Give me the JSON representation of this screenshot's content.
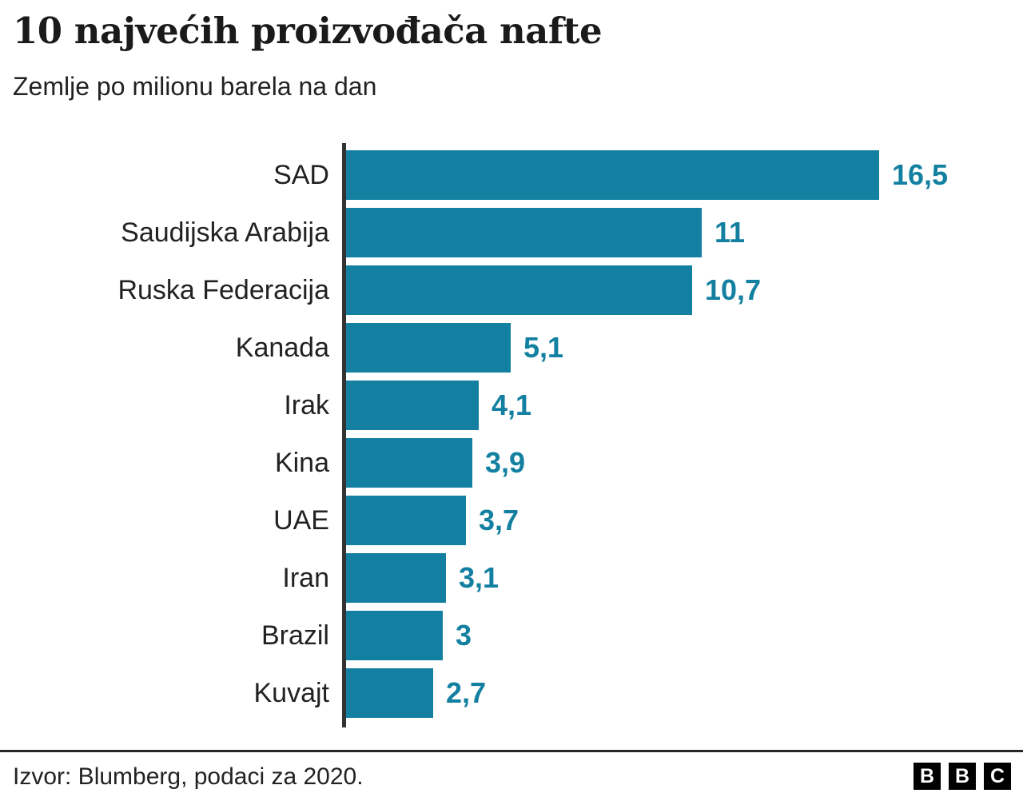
{
  "header": {
    "title": "10 najvećih proizvođača nafte",
    "subtitle": "Zemlje po milionu barela na dan"
  },
  "chart_data": {
    "type": "bar",
    "orientation": "horizontal",
    "title": "10 najvećih proizvođača nafte",
    "subtitle": "Zemlje po milionu barela na dan",
    "categories": [
      "SAD",
      "Saudijska Arabija",
      "Ruska Federacija",
      "Kanada",
      "Irak",
      "Kina",
      "UAE",
      "Iran",
      "Brazil",
      "Kuvajt"
    ],
    "values": [
      16.5,
      11,
      10.7,
      5.1,
      4.1,
      3.9,
      3.7,
      3.1,
      3,
      2.7
    ],
    "value_labels": [
      "16,5",
      "11",
      "10,7",
      "5,1",
      "4,1",
      "3,9",
      "3,7",
      "3,1",
      "3",
      "2,7"
    ],
    "xlim": [
      0,
      16.5
    ],
    "grid": false,
    "legend": false,
    "bar_color": "#1380A1",
    "value_label_color": "#1380A1",
    "axis_color": "#333333"
  },
  "footer": {
    "source": "Izvor: Blumberg, podaci za 2020.",
    "logo_letters": [
      "B",
      "B",
      "C"
    ]
  }
}
